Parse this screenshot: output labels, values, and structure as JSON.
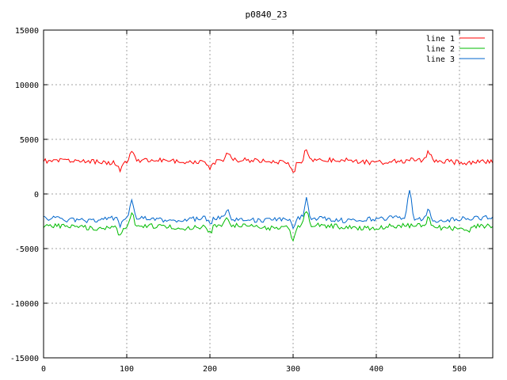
{
  "chart_data": {
    "type": "line",
    "title": "p0840_23",
    "xlabel": "",
    "ylabel": "",
    "xlim": [
      0,
      540
    ],
    "ylim": [
      -15000,
      15000
    ],
    "x_ticks": [
      0,
      100,
      200,
      300,
      400,
      500
    ],
    "y_ticks": [
      -15000,
      -10000,
      -5000,
      0,
      5000,
      10000,
      15000
    ],
    "grid": true,
    "legend_position": "top-right",
    "series": [
      {
        "name": "line 1",
        "color": "#ff0000",
        "base": 3000,
        "noise": 220,
        "features": [
          [
            92,
            -800
          ],
          [
            106,
            1100
          ],
          [
            200,
            -700
          ],
          [
            221,
            900
          ],
          [
            300,
            -1000
          ],
          [
            316,
            1200
          ],
          [
            463,
            700
          ]
        ]
      },
      {
        "name": "line 2",
        "color": "#00bb00",
        "base": -3000,
        "noise": 220,
        "features": [
          [
            92,
            -900
          ],
          [
            106,
            1200
          ],
          [
            200,
            -600
          ],
          [
            221,
            800
          ],
          [
            300,
            -1100
          ],
          [
            316,
            1400
          ],
          [
            463,
            800
          ],
          [
            510,
            -400
          ]
        ]
      },
      {
        "name": "line 3",
        "color": "#0066cc",
        "base": -2300,
        "noise": 220,
        "features": [
          [
            92,
            -700
          ],
          [
            106,
            1600
          ],
          [
            200,
            -500
          ],
          [
            221,
            900
          ],
          [
            300,
            -800
          ],
          [
            316,
            1700
          ],
          [
            440,
            2800
          ],
          [
            463,
            1100
          ]
        ]
      }
    ]
  }
}
